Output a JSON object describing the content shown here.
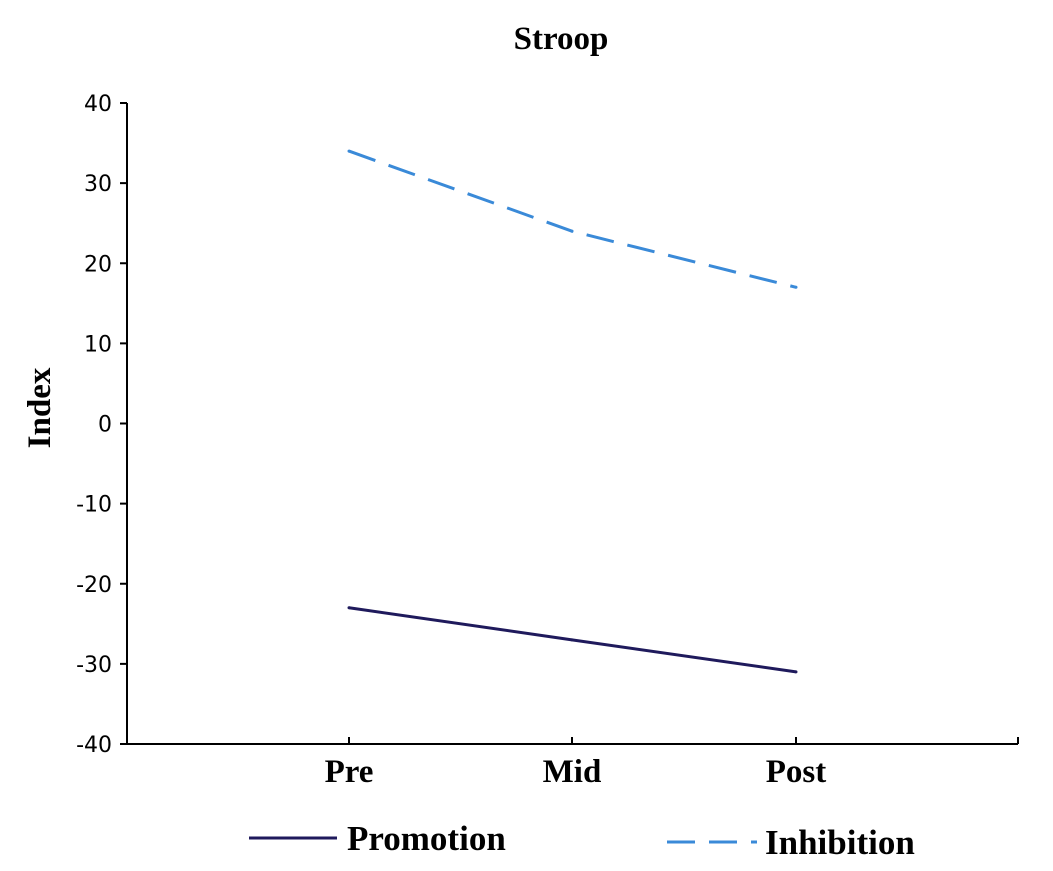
{
  "chart_data": {
    "type": "line",
    "title": "Stroop",
    "xlabel": "",
    "ylabel": "Index",
    "categories": [
      "Pre",
      "Mid",
      "Post"
    ],
    "ylim": [
      -40,
      40
    ],
    "yticks": [
      40,
      30,
      20,
      10,
      0,
      -10,
      -20,
      -30,
      -40
    ],
    "grid": false,
    "legend_position": "bottom",
    "series": [
      {
        "name": "Promotion",
        "values": [
          -23,
          -27,
          -31
        ],
        "color": "#1f1a5c",
        "style": "solid"
      },
      {
        "name": "Inhibition",
        "values": [
          34,
          24,
          17
        ],
        "color": "#3a8ad8",
        "style": "dashed"
      }
    ]
  }
}
